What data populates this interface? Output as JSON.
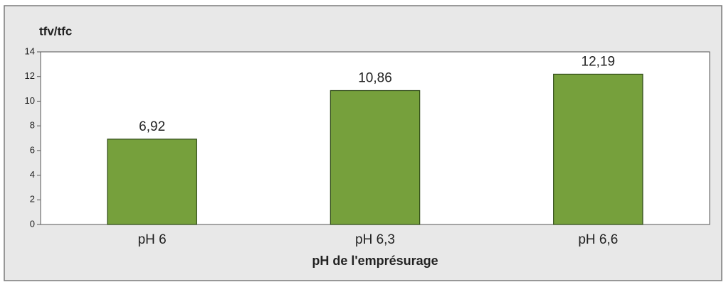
{
  "chart_data": {
    "type": "bar",
    "y_label": "tfv/tfc",
    "x_label": "pH de l'emprésurage",
    "categories": [
      "pH 6",
      "pH 6,3",
      "pH 6,6"
    ],
    "values": [
      6.92,
      10.86,
      12.19
    ],
    "value_labels": [
      "6,92",
      "10,86",
      "12,19"
    ],
    "color": "#76a03c",
    "ylim": [
      0,
      14
    ],
    "yticks": [
      0,
      2,
      4,
      6,
      8,
      10,
      12,
      14
    ],
    "grid": false
  }
}
